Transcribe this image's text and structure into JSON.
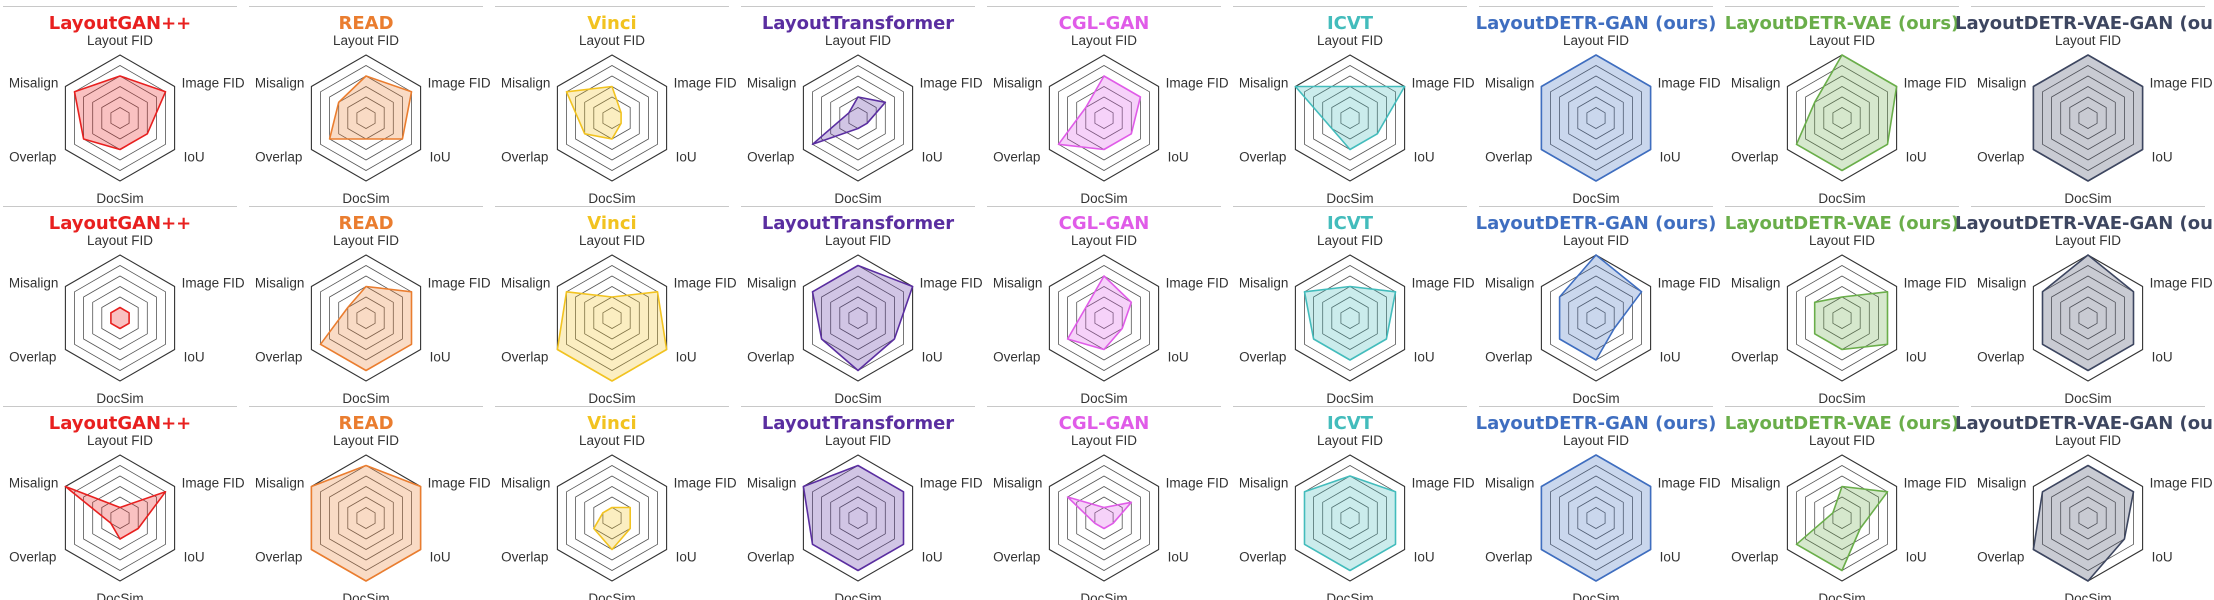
{
  "axes": [
    "Layout FID",
    "Image FID",
    "IoU",
    "DocSim",
    "Overlap",
    "Misalign"
  ],
  "chart_data": [
    {
      "type": "radar",
      "methods": [
        {
          "name": "LayoutGAN++",
          "color": "#e8201f",
          "values": [
            4,
            5,
            3,
            3,
            4,
            5
          ]
        },
        {
          "name": "READ",
          "color": "#ea7d2f",
          "values": [
            4,
            5,
            4,
            2,
            4,
            3
          ]
        },
        {
          "name": "Vinci",
          "color": "#f2c320",
          "values": [
            3,
            1,
            1,
            2,
            3,
            5
          ]
        },
        {
          "name": "LayoutTransformer",
          "color": "#5a2ea0",
          "values": [
            2,
            3,
            1,
            1,
            5,
            1
          ]
        },
        {
          "name": "CGL-GAN",
          "color": "#e05ce8",
          "values": [
            4,
            4,
            3,
            3,
            5,
            2
          ]
        },
        {
          "name": "ICVT",
          "color": "#43bcbc",
          "values": [
            3,
            6,
            3,
            3,
            2,
            6
          ]
        },
        {
          "name": "LayoutDETR-GAN (ours)",
          "color": "#3f6ec0",
          "values": [
            6,
            6,
            6,
            6,
            6,
            6
          ]
        },
        {
          "name": "LayoutDETR-VAE (ours)",
          "color": "#6aae4a",
          "values": [
            6,
            6,
            5,
            5,
            5,
            3
          ]
        },
        {
          "name": "LayoutDETR-VAE-GAN (ours)",
          "color": "#3d4660",
          "values": [
            6,
            6,
            6,
            6,
            6,
            6
          ]
        }
      ]
    },
    {
      "type": "radar",
      "methods": [
        {
          "name": "LayoutGAN++",
          "color": "#e8201f",
          "values": [
            1,
            1,
            1,
            1,
            1,
            1
          ]
        },
        {
          "name": "READ",
          "color": "#ea7d2f",
          "values": [
            3,
            5,
            5,
            5,
            5,
            2
          ]
        },
        {
          "name": "Vinci",
          "color": "#f2c320",
          "values": [
            2,
            5,
            6,
            6,
            6,
            5
          ]
        },
        {
          "name": "LayoutTransformer",
          "color": "#5a2ea0",
          "values": [
            5,
            6,
            4,
            5,
            4,
            5
          ]
        },
        {
          "name": "CGL-GAN",
          "color": "#e05ce8",
          "values": [
            4,
            3,
            2,
            3,
            4,
            2
          ]
        },
        {
          "name": "ICVT",
          "color": "#43bcbc",
          "values": [
            3,
            5,
            4,
            4,
            4,
            5
          ]
        },
        {
          "name": "LayoutDETR-GAN (ours)",
          "color": "#3f6ec0",
          "values": [
            6,
            5,
            2,
            4,
            4,
            4
          ]
        },
        {
          "name": "LayoutDETR-VAE (ours)",
          "color": "#6aae4a",
          "values": [
            2,
            5,
            5,
            3,
            3,
            3
          ]
        },
        {
          "name": "LayoutDETR-VAE-GAN (ours)",
          "color": "#3d4660",
          "values": [
            6,
            5,
            5,
            5,
            5,
            5
          ]
        }
      ]
    },
    {
      "type": "radar",
      "methods": [
        {
          "name": "LayoutGAN++",
          "color": "#e8201f",
          "values": [
            1,
            5,
            2,
            2,
            1,
            6
          ]
        },
        {
          "name": "READ",
          "color": "#ea7d2f",
          "values": [
            5,
            6,
            6,
            6,
            6,
            6
          ]
        },
        {
          "name": "Vinci",
          "color": "#f2c320",
          "values": [
            1,
            2,
            2,
            3,
            2,
            1
          ]
        },
        {
          "name": "LayoutTransformer",
          "color": "#5a2ea0",
          "values": [
            5,
            5,
            5,
            5,
            5,
            6
          ]
        },
        {
          "name": "CGL-GAN",
          "color": "#e05ce8",
          "values": [
            1,
            3,
            1,
            1,
            1,
            4
          ]
        },
        {
          "name": "ICVT",
          "color": "#43bcbc",
          "values": [
            4,
            5,
            5,
            5,
            5,
            5
          ]
        },
        {
          "name": "LayoutDETR-GAN (ours)",
          "color": "#3f6ec0",
          "values": [
            6,
            6,
            6,
            6,
            6,
            6
          ]
        },
        {
          "name": "LayoutDETR-VAE (ours)",
          "color": "#6aae4a",
          "values": [
            3,
            5,
            2,
            5,
            5,
            1
          ]
        },
        {
          "name": "LayoutDETR-VAE-GAN (ours)",
          "color": "#3d4660",
          "values": [
            5,
            5,
            4,
            6,
            6,
            5
          ]
        }
      ]
    }
  ]
}
